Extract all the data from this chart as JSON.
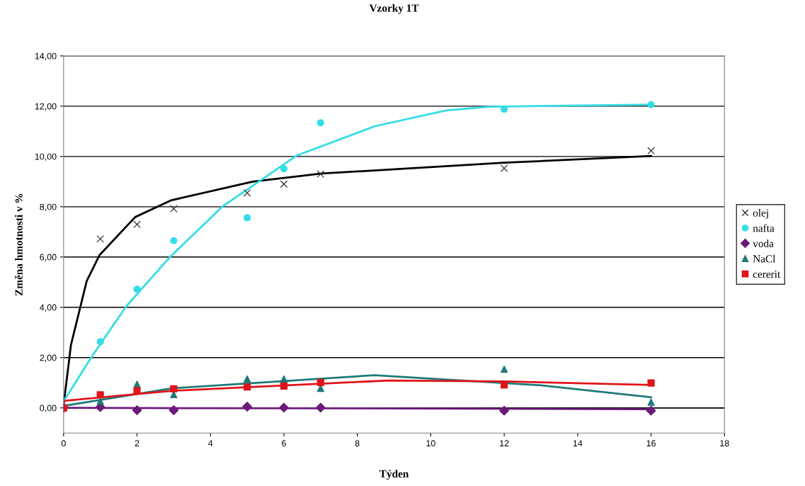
{
  "chart_data": {
    "type": "scatter",
    "title": "Vzorky 1T",
    "xlabel": "Týden",
    "ylabel": "Změna hmotnosti v %",
    "x": [
      0,
      1,
      2,
      3,
      5,
      6,
      7,
      12,
      16
    ],
    "xlim": [
      0,
      18
    ],
    "xticks": [
      0,
      2,
      4,
      6,
      8,
      10,
      12,
      14,
      16,
      18
    ],
    "ylim": [
      -1,
      14
    ],
    "yticks": [
      {
        "value": 0,
        "label": "0,00"
      },
      {
        "value": 2,
        "label": "2,00"
      },
      {
        "value": 4,
        "label": "4,00"
      },
      {
        "value": 6,
        "label": "6,00"
      },
      {
        "value": 8,
        "label": "8,00"
      },
      {
        "value": 10,
        "label": "10,00"
      },
      {
        "value": 12,
        "label": "12,00"
      },
      {
        "value": 14,
        "label": "14,00"
      }
    ],
    "grid": "y",
    "legend": "right",
    "series": [
      {
        "name": "olej",
        "color": "#333333",
        "marker": "cross",
        "values": [
          0,
          6.72,
          7.3,
          7.92,
          8.55,
          8.9,
          9.3,
          9.53,
          10.23
        ]
      },
      {
        "name": "nafta",
        "color": "#33dde6",
        "marker": "circle",
        "values": [
          0,
          2.63,
          4.72,
          6.65,
          7.56,
          9.51,
          11.34,
          11.88,
          12.06
        ]
      },
      {
        "name": "voda",
        "color": "#6b1a7a",
        "marker": "diamond",
        "values": [
          0,
          0.03,
          -0.09,
          -0.09,
          0.05,
          0.01,
          0.01,
          -0.11,
          -0.11
        ]
      },
      {
        "name": "NaCl",
        "color": "#1f7a78",
        "marker": "triangle",
        "values": [
          0,
          0.26,
          0.94,
          0.53,
          1.15,
          1.15,
          0.78,
          1.54,
          0.23
        ]
      },
      {
        "name": "cererit",
        "color": "#e0141a",
        "marker": "square",
        "values": [
          0,
          0.52,
          0.68,
          0.76,
          0.83,
          0.87,
          1.01,
          0.91,
          0.99
        ]
      },
      {
        "type": "line",
        "color": "#000000",
        "x": [
          0,
          0.2,
          0.44,
          0.63,
          0.98,
          1.95,
          2.94,
          5.15,
          7.03,
          12.0,
          16.0
        ],
        "values": [
          0.1,
          2.5,
          3.92,
          5.05,
          6.08,
          7.59,
          8.26,
          9.0,
          9.32,
          9.75,
          10.02
        ]
      },
      {
        "type": "line",
        "color": "#33dde6",
        "x": [
          0,
          0.75,
          1.7,
          2.89,
          4.33,
          6.34,
          8.47,
          10.42,
          11.59,
          16.0
        ],
        "values": [
          0.26,
          2.0,
          4.03,
          5.99,
          8.01,
          10.03,
          11.2,
          11.83,
          11.98,
          12.06
        ]
      },
      {
        "type": "line",
        "color": "#6b1a7a",
        "x": [
          0,
          8,
          16
        ],
        "values": [
          0,
          -0.02,
          -0.05
        ]
      },
      {
        "type": "line",
        "color": "#1f7a78",
        "x": [
          0,
          2.95,
          8.47,
          13.0,
          16.0
        ],
        "values": [
          0.08,
          0.78,
          1.3,
          0.9,
          0.42
        ]
      },
      {
        "type": "line",
        "color": "#e0141a",
        "x": [
          0,
          2.95,
          8.85,
          12.0,
          16.0
        ],
        "values": [
          0.28,
          0.68,
          1.09,
          1.05,
          0.91
        ]
      }
    ]
  }
}
